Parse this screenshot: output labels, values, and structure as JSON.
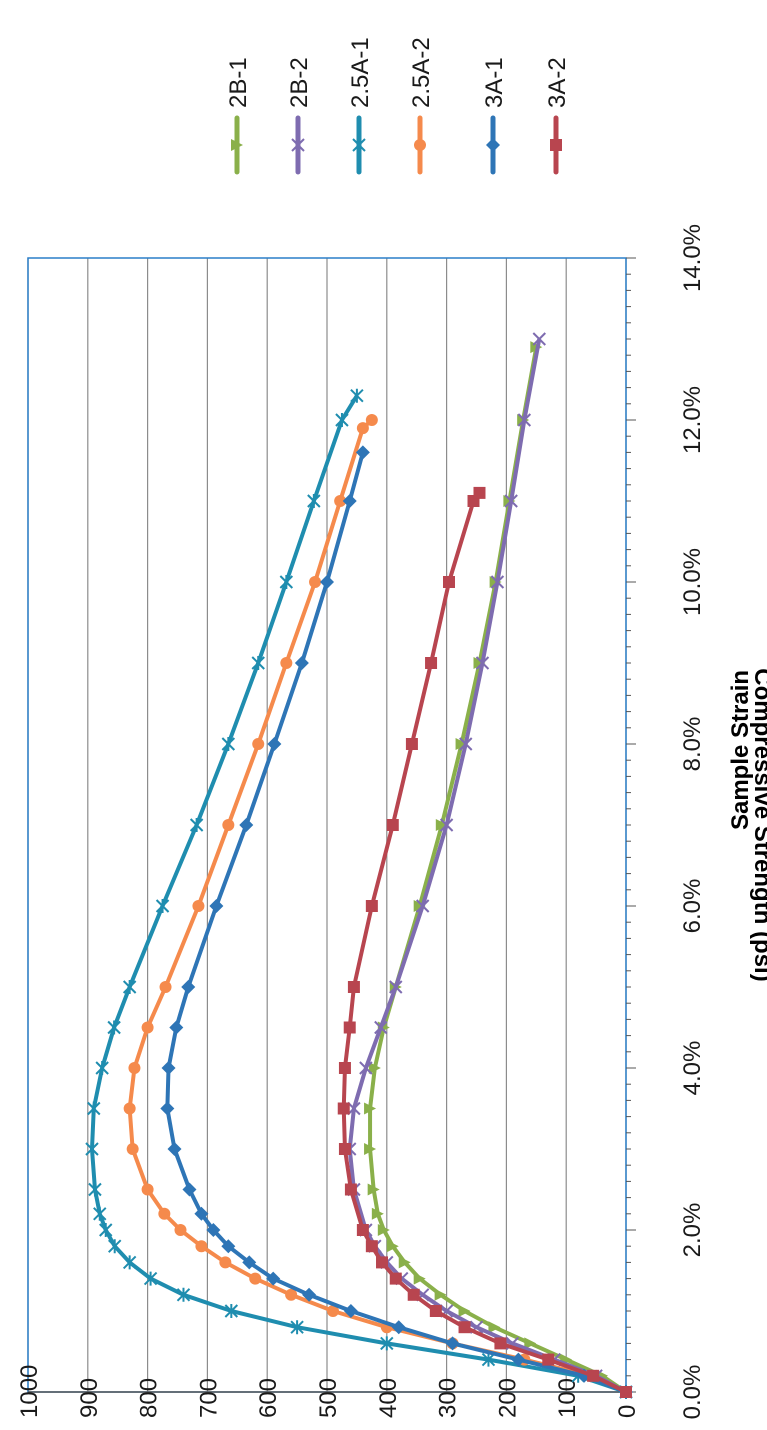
{
  "chart_data": {
    "type": "line",
    "xlabel": "Sample Strain",
    "ylabel": "Compressive Strength (psi)",
    "xlim": [
      0,
      0.14
    ],
    "ylim": [
      0,
      1000
    ],
    "x_ticks": [
      "0.0%",
      "2.0%",
      "4.0%",
      "6.0%",
      "8.0%",
      "10.0%",
      "12.0%",
      "14.0%"
    ],
    "y_ticks": [
      "0",
      "100",
      "200",
      "300",
      "400",
      "500",
      "600",
      "700",
      "800",
      "900",
      "1000"
    ],
    "grid": "horizontal",
    "legend_position": "right",
    "series": [
      {
        "name": "2B-1",
        "color": "#8AB04A",
        "marker": "triangle",
        "points": [
          [
            0,
            0
          ],
          [
            0.002,
            40
          ],
          [
            0.004,
            100
          ],
          [
            0.006,
            160
          ],
          [
            0.008,
            220
          ],
          [
            0.01,
            270
          ],
          [
            0.012,
            310
          ],
          [
            0.014,
            345
          ],
          [
            0.016,
            370
          ],
          [
            0.018,
            390
          ],
          [
            0.02,
            405
          ],
          [
            0.022,
            415
          ],
          [
            0.025,
            422
          ],
          [
            0.03,
            428
          ],
          [
            0.035,
            428
          ],
          [
            0.04,
            420
          ],
          [
            0.045,
            405
          ],
          [
            0.05,
            385
          ],
          [
            0.06,
            345
          ],
          [
            0.07,
            308
          ],
          [
            0.08,
            275
          ],
          [
            0.09,
            245
          ],
          [
            0.1,
            218
          ],
          [
            0.11,
            195
          ],
          [
            0.12,
            172
          ],
          [
            0.129,
            150
          ]
        ]
      },
      {
        "name": "2B-2",
        "color": "#7E6CB0",
        "marker": "x",
        "points": [
          [
            0,
            0
          ],
          [
            0.002,
            50
          ],
          [
            0.004,
            120
          ],
          [
            0.006,
            190
          ],
          [
            0.008,
            250
          ],
          [
            0.01,
            300
          ],
          [
            0.012,
            340
          ],
          [
            0.014,
            375
          ],
          [
            0.016,
            400
          ],
          [
            0.018,
            420
          ],
          [
            0.02,
            435
          ],
          [
            0.025,
            455
          ],
          [
            0.03,
            462
          ],
          [
            0.035,
            455
          ],
          [
            0.04,
            435
          ],
          [
            0.045,
            410
          ],
          [
            0.05,
            385
          ],
          [
            0.06,
            340
          ],
          [
            0.07,
            300
          ],
          [
            0.08,
            268
          ],
          [
            0.09,
            240
          ],
          [
            0.1,
            215
          ],
          [
            0.11,
            192
          ],
          [
            0.12,
            170
          ],
          [
            0.13,
            145
          ]
        ]
      },
      {
        "name": "2.5A-1",
        "color": "#1F8DAF",
        "marker": "star",
        "points": [
          [
            0,
            0
          ],
          [
            0.002,
            80
          ],
          [
            0.004,
            230
          ],
          [
            0.006,
            400
          ],
          [
            0.008,
            550
          ],
          [
            0.01,
            660
          ],
          [
            0.012,
            740
          ],
          [
            0.014,
            795
          ],
          [
            0.016,
            830
          ],
          [
            0.018,
            855
          ],
          [
            0.02,
            870
          ],
          [
            0.022,
            880
          ],
          [
            0.025,
            888
          ],
          [
            0.03,
            893
          ],
          [
            0.035,
            890
          ],
          [
            0.04,
            876
          ],
          [
            0.045,
            856
          ],
          [
            0.05,
            830
          ],
          [
            0.06,
            775
          ],
          [
            0.07,
            718
          ],
          [
            0.08,
            665
          ],
          [
            0.09,
            615
          ],
          [
            0.1,
            568
          ],
          [
            0.11,
            522
          ],
          [
            0.12,
            475
          ],
          [
            0.123,
            450
          ]
        ]
      },
      {
        "name": "2.5A-2",
        "color": "#F58A4C",
        "marker": "circle",
        "points": [
          [
            0,
            0
          ],
          [
            0.002,
            60
          ],
          [
            0.004,
            170
          ],
          [
            0.006,
            290
          ],
          [
            0.008,
            400
          ],
          [
            0.01,
            490
          ],
          [
            0.012,
            560
          ],
          [
            0.014,
            620
          ],
          [
            0.016,
            670
          ],
          [
            0.018,
            710
          ],
          [
            0.02,
            745
          ],
          [
            0.022,
            772
          ],
          [
            0.025,
            800
          ],
          [
            0.03,
            825
          ],
          [
            0.035,
            830
          ],
          [
            0.04,
            822
          ],
          [
            0.045,
            800
          ],
          [
            0.05,
            770
          ],
          [
            0.06,
            715
          ],
          [
            0.07,
            665
          ],
          [
            0.08,
            615
          ],
          [
            0.09,
            568
          ],
          [
            0.1,
            520
          ],
          [
            0.11,
            478
          ],
          [
            0.119,
            440
          ],
          [
            0.12,
            425
          ]
        ]
      },
      {
        "name": "3A-1",
        "color": "#2E75B6",
        "marker": "diamond",
        "points": [
          [
            0,
            0
          ],
          [
            0.002,
            70
          ],
          [
            0.004,
            180
          ],
          [
            0.006,
            290
          ],
          [
            0.008,
            380
          ],
          [
            0.01,
            460
          ],
          [
            0.012,
            530
          ],
          [
            0.014,
            590
          ],
          [
            0.016,
            630
          ],
          [
            0.018,
            665
          ],
          [
            0.02,
            690
          ],
          [
            0.022,
            710
          ],
          [
            0.025,
            730
          ],
          [
            0.03,
            755
          ],
          [
            0.035,
            767
          ],
          [
            0.04,
            765
          ],
          [
            0.045,
            752
          ],
          [
            0.05,
            732
          ],
          [
            0.06,
            685
          ],
          [
            0.07,
            635
          ],
          [
            0.08,
            588
          ],
          [
            0.09,
            542
          ],
          [
            0.1,
            500
          ],
          [
            0.11,
            462
          ],
          [
            0.116,
            440
          ]
        ]
      },
      {
        "name": "3A-2",
        "color": "#B8454F",
        "marker": "square",
        "points": [
          [
            0,
            0
          ],
          [
            0.002,
            55
          ],
          [
            0.004,
            130
          ],
          [
            0.006,
            210
          ],
          [
            0.008,
            270
          ],
          [
            0.01,
            318
          ],
          [
            0.012,
            355
          ],
          [
            0.014,
            385
          ],
          [
            0.016,
            408
          ],
          [
            0.018,
            425
          ],
          [
            0.02,
            440
          ],
          [
            0.025,
            460
          ],
          [
            0.03,
            470
          ],
          [
            0.035,
            472
          ],
          [
            0.04,
            470
          ],
          [
            0.045,
            462
          ],
          [
            0.05,
            455
          ],
          [
            0.06,
            425
          ],
          [
            0.07,
            390
          ],
          [
            0.08,
            358
          ],
          [
            0.09,
            326
          ],
          [
            0.1,
            296
          ],
          [
            0.11,
            255
          ],
          [
            0.111,
            245
          ]
        ]
      }
    ]
  }
}
